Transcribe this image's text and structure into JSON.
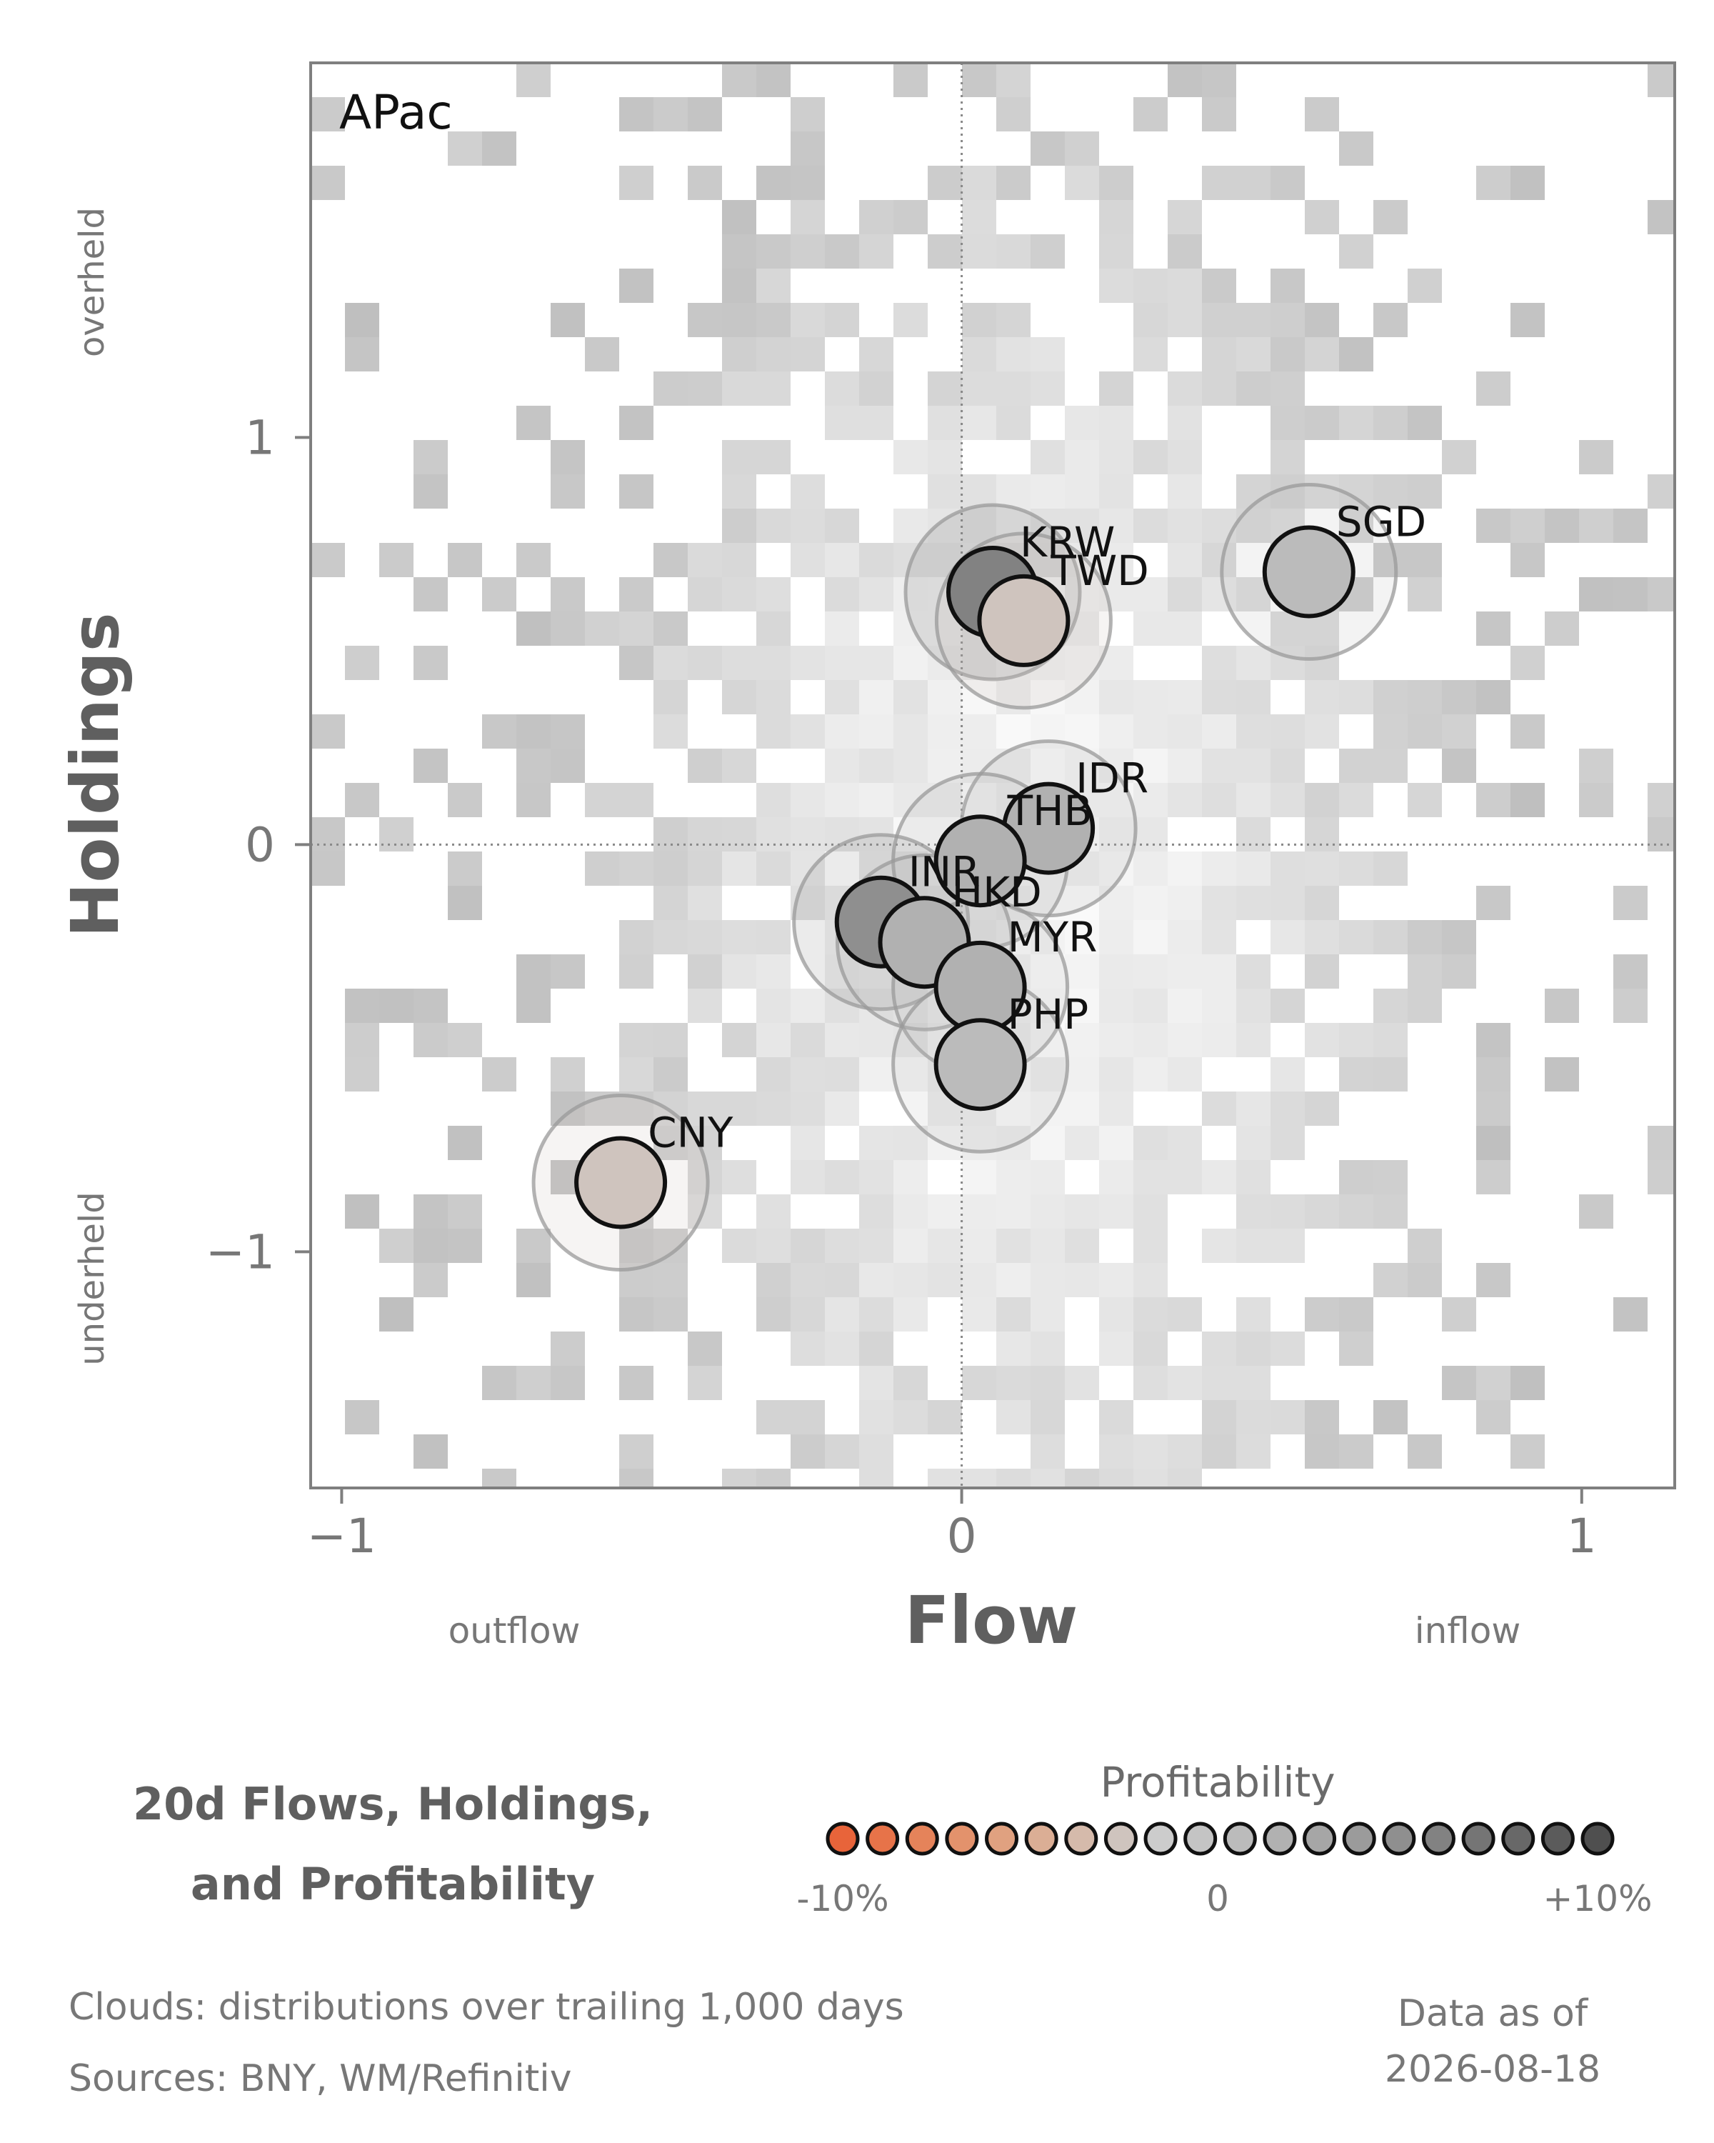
{
  "chart_data": {
    "type": "scatter",
    "panel_label": "APac",
    "xlabel": "Flow",
    "ylabel": "Holdings",
    "x_low_label": "outflow",
    "x_high_label": "inflow",
    "y_low_label": "underheld",
    "y_high_label": "overheld",
    "xlim": [
      -1.05,
      1.15
    ],
    "ylim": [
      -1.58,
      1.92
    ],
    "xticks": [
      {
        "value": -1,
        "label": "−1"
      },
      {
        "value": 0,
        "label": "0"
      },
      {
        "value": 1,
        "label": "1"
      }
    ],
    "yticks": [
      {
        "value": -1,
        "label": "−1"
      },
      {
        "value": 0,
        "label": "0"
      },
      {
        "value": 1,
        "label": "1"
      }
    ],
    "reference_lines": {
      "x": 0,
      "y": 0,
      "style": "dotted"
    },
    "background": "2D histogram clouds (grayscale)",
    "points": [
      {
        "label": "KRW",
        "x": 0.05,
        "y": 0.62,
        "profitability": 6
      },
      {
        "label": "TWD",
        "x": 0.1,
        "y": 0.55,
        "profitability": -3
      },
      {
        "label": "SGD",
        "x": 0.56,
        "y": 0.67,
        "profitability": 1
      },
      {
        "label": "IDR",
        "x": 0.14,
        "y": 0.04,
        "profitability": 2
      },
      {
        "label": "THB",
        "x": 0.03,
        "y": -0.04,
        "profitability": 2
      },
      {
        "label": "INR",
        "x": -0.13,
        "y": -0.19,
        "profitability": 5
      },
      {
        "label": "HKD",
        "x": -0.06,
        "y": -0.24,
        "profitability": 2
      },
      {
        "label": "MYR",
        "x": 0.03,
        "y": -0.35,
        "profitability": 2
      },
      {
        "label": "PHP",
        "x": 0.03,
        "y": -0.54,
        "profitability": 1
      },
      {
        "label": "CNY",
        "x": -0.55,
        "y": -0.83,
        "profitability": -3
      }
    ],
    "legend": {
      "title": "Profitability",
      "min_label": "-10%",
      "mid_label": "0",
      "max_label": "+10%",
      "colors": [
        "#e8643a",
        "#e77349",
        "#e5835a",
        "#e3926c",
        "#e0a180",
        "#dbae95",
        "#d5baab",
        "#cfc4be",
        "#cccccc",
        "#c4c4c4",
        "#bbbbbb",
        "#b1b1b1",
        "#a6a6a6",
        "#9b9b9b",
        "#8f8f8f",
        "#828282",
        "#757575",
        "#686868",
        "#5b5b5b",
        "#4f4f4f"
      ]
    }
  },
  "title": {
    "line1": "20d Flows, Holdings,",
    "line2": "and Profitability"
  },
  "footer": {
    "clouds_note": "Clouds:  distributions over trailing 1,000 days",
    "sources": "Sources:  BNY, WM/Refinitiv",
    "data_as_of_label": "Data as of",
    "data_date": "2026-08-18"
  }
}
